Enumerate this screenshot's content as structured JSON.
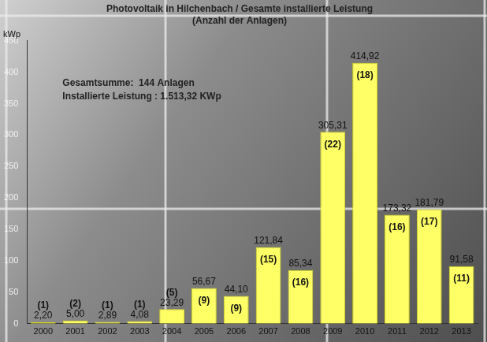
{
  "chart_data": {
    "type": "bar",
    "title": "Photovoltaik in Hilchenbach / Gesamte installierte Leistung",
    "subtitle": "(Anzahl der Anlagen)",
    "y_label": "kWp",
    "annotations": [
      "Gesamtsumme:  144 Anlagen",
      "Installierte Leistung : 1.513,32 KWp"
    ],
    "categories": [
      "2000",
      "2001",
      "2002",
      "2003",
      "2004",
      "2005",
      "2006",
      "2007",
      "2008",
      "2009",
      "2010",
      "2011",
      "2012",
      "2013"
    ],
    "values": [
      2.2,
      5.0,
      2.89,
      4.08,
      23.29,
      56.67,
      44.1,
      121.84,
      85.34,
      305.31,
      414.92,
      173.32,
      181.79,
      91.58
    ],
    "value_labels": [
      "2,20",
      "5,00",
      "2,89",
      "4,08",
      "23,29",
      "56,67",
      "44,10",
      "121,84",
      "85,34",
      "305,31",
      "414,92",
      "173,32",
      "181,79",
      "91,58"
    ],
    "counts": [
      1,
      2,
      1,
      1,
      5,
      9,
      9,
      15,
      16,
      22,
      18,
      16,
      17,
      11
    ],
    "count_labels": [
      "(1)",
      "(2)",
      "(1)",
      "(1)",
      "(5)",
      "(9)",
      "(9)",
      "(15)",
      "(16)",
      "(22)",
      "(18)",
      "(16)",
      "(17)",
      "(11)"
    ],
    "color": "#ffff66",
    "ylim": [
      0,
      450
    ],
    "yticks": [
      0,
      50,
      100,
      150,
      200,
      250,
      300,
      350,
      400,
      450
    ],
    "grid": false,
    "data_labels": true
  }
}
